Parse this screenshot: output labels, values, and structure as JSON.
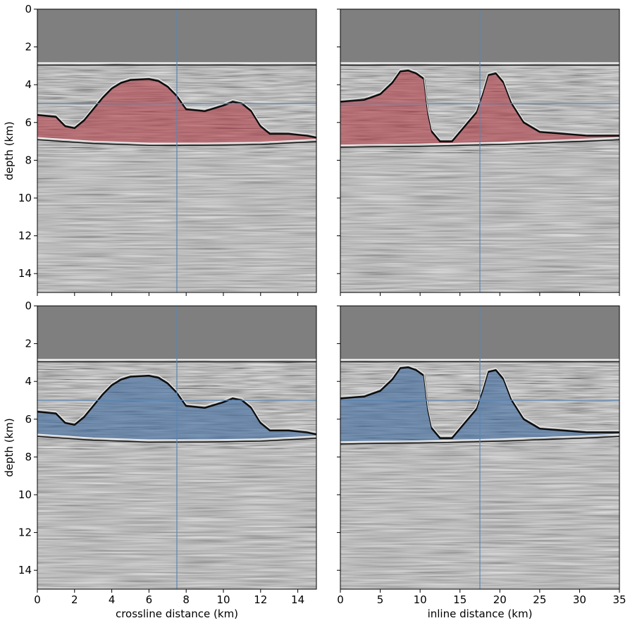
{
  "chart_data": [
    {
      "type": "heatmap",
      "panel": "top-left",
      "xlabel": "",
      "ylabel": "depth (km)",
      "xlim": [
        0,
        15
      ],
      "ylim": [
        0,
        15
      ],
      "y_inverted": true,
      "xticks": [
        0,
        2,
        4,
        6,
        8,
        10,
        12,
        14
      ],
      "yticks": [
        0,
        2,
        4,
        6,
        8,
        10,
        12,
        14
      ],
      "overlay_color": "#b0404a",
      "crosshair": {
        "x": 7.5,
        "y": 5.0
      },
      "water_bottom_depth": 2.85,
      "salt_top": [
        [
          0,
          5.6
        ],
        [
          1.0,
          5.7
        ],
        [
          1.5,
          6.2
        ],
        [
          2.0,
          6.3
        ],
        [
          2.5,
          5.9
        ],
        [
          3.0,
          5.3
        ],
        [
          3.5,
          4.7
        ],
        [
          4.0,
          4.2
        ],
        [
          4.5,
          3.9
        ],
        [
          5.0,
          3.75
        ],
        [
          6.0,
          3.7
        ],
        [
          6.5,
          3.8
        ],
        [
          7.0,
          4.1
        ],
        [
          7.5,
          4.6
        ],
        [
          8.0,
          5.3
        ],
        [
          9.0,
          5.4
        ],
        [
          10.0,
          5.1
        ],
        [
          10.5,
          4.9
        ],
        [
          11.0,
          5.0
        ],
        [
          11.5,
          5.4
        ],
        [
          12.0,
          6.2
        ],
        [
          12.5,
          6.6
        ],
        [
          13.5,
          6.6
        ],
        [
          14.5,
          6.7
        ],
        [
          15.0,
          6.8
        ]
      ],
      "salt_base": [
        [
          0,
          6.8
        ],
        [
          3.0,
          7.0
        ],
        [
          6.0,
          7.1
        ],
        [
          9.0,
          7.1
        ],
        [
          12.0,
          7.05
        ],
        [
          15.0,
          6.9
        ]
      ]
    },
    {
      "type": "heatmap",
      "panel": "top-right",
      "xlabel": "",
      "ylabel": "",
      "xlim": [
        0,
        35
      ],
      "ylim": [
        0,
        15
      ],
      "y_inverted": true,
      "xticks": [
        0,
        5,
        10,
        15,
        20,
        25,
        30,
        35
      ],
      "yticks": [
        0,
        2,
        4,
        6,
        8,
        10,
        12,
        14
      ],
      "overlay_color": "#b0404a",
      "crosshair": {
        "x": 17.5,
        "y": 5.0
      },
      "water_bottom_depth": 2.85,
      "salt_top": [
        [
          0,
          4.9
        ],
        [
          3.0,
          4.8
        ],
        [
          5.0,
          4.5
        ],
        [
          6.5,
          3.9
        ],
        [
          7.5,
          3.3
        ],
        [
          8.5,
          3.25
        ],
        [
          9.5,
          3.4
        ],
        [
          10.5,
          3.7
        ],
        [
          11.0,
          5.5
        ],
        [
          11.5,
          6.5
        ],
        [
          12.5,
          7.0
        ],
        [
          14.0,
          7.0
        ],
        [
          15.0,
          6.5
        ],
        [
          16.0,
          6.0
        ],
        [
          17.0,
          5.5
        ],
        [
          17.8,
          4.5
        ],
        [
          18.5,
          3.5
        ],
        [
          19.5,
          3.4
        ],
        [
          20.5,
          3.9
        ],
        [
          21.5,
          5.0
        ],
        [
          23.0,
          6.0
        ],
        [
          25.0,
          6.5
        ],
        [
          28.0,
          6.6
        ],
        [
          31.0,
          6.7
        ],
        [
          35.0,
          6.7
        ]
      ],
      "salt_base": [
        [
          0,
          7.2
        ],
        [
          10.0,
          7.15
        ],
        [
          20.0,
          7.05
        ],
        [
          30.0,
          6.9
        ],
        [
          35.0,
          6.8
        ]
      ]
    },
    {
      "type": "heatmap",
      "panel": "bottom-left",
      "xlabel": "crossline distance (km)",
      "ylabel": "depth (km)",
      "xlim": [
        0,
        15
      ],
      "ylim": [
        0,
        15
      ],
      "y_inverted": true,
      "xticks": [
        0,
        2,
        4,
        6,
        8,
        10,
        12,
        14
      ],
      "yticks": [
        0,
        2,
        4,
        6,
        8,
        10,
        12,
        14
      ],
      "overlay_color": "#3f6a9e",
      "crosshair": {
        "x": 7.5,
        "y": 5.0
      },
      "water_bottom_depth": 2.85,
      "salt_top": [
        [
          0,
          5.6
        ],
        [
          1.0,
          5.7
        ],
        [
          1.5,
          6.2
        ],
        [
          2.0,
          6.3
        ],
        [
          2.5,
          5.9
        ],
        [
          3.0,
          5.3
        ],
        [
          3.5,
          4.7
        ],
        [
          4.0,
          4.2
        ],
        [
          4.5,
          3.9
        ],
        [
          5.0,
          3.75
        ],
        [
          6.0,
          3.7
        ],
        [
          6.5,
          3.8
        ],
        [
          7.0,
          4.1
        ],
        [
          7.5,
          4.6
        ],
        [
          8.0,
          5.3
        ],
        [
          9.0,
          5.4
        ],
        [
          10.0,
          5.1
        ],
        [
          10.5,
          4.9
        ],
        [
          11.0,
          5.0
        ],
        [
          11.5,
          5.4
        ],
        [
          12.0,
          6.2
        ],
        [
          12.5,
          6.6
        ],
        [
          13.5,
          6.6
        ],
        [
          14.5,
          6.7
        ],
        [
          15.0,
          6.8
        ]
      ],
      "salt_base": [
        [
          0,
          6.8
        ],
        [
          3.0,
          7.0
        ],
        [
          6.0,
          7.1
        ],
        [
          9.0,
          7.1
        ],
        [
          12.0,
          7.05
        ],
        [
          15.0,
          6.9
        ]
      ]
    },
    {
      "type": "heatmap",
      "panel": "bottom-right",
      "xlabel": "inline distance (km)",
      "ylabel": "",
      "xlim": [
        0,
        35
      ],
      "ylim": [
        0,
        15
      ],
      "y_inverted": true,
      "xticks": [
        0,
        5,
        10,
        15,
        20,
        25,
        30,
        35
      ],
      "yticks": [
        0,
        2,
        4,
        6,
        8,
        10,
        12,
        14
      ],
      "overlay_color": "#3f6a9e",
      "crosshair": {
        "x": 17.5,
        "y": 5.0
      },
      "water_bottom_depth": 2.85,
      "salt_top": [
        [
          0,
          4.9
        ],
        [
          3.0,
          4.8
        ],
        [
          5.0,
          4.5
        ],
        [
          6.5,
          3.9
        ],
        [
          7.5,
          3.3
        ],
        [
          8.5,
          3.25
        ],
        [
          9.5,
          3.4
        ],
        [
          10.5,
          3.7
        ],
        [
          11.0,
          5.5
        ],
        [
          11.5,
          6.5
        ],
        [
          12.5,
          7.0
        ],
        [
          14.0,
          7.0
        ],
        [
          15.0,
          6.5
        ],
        [
          16.0,
          6.0
        ],
        [
          17.0,
          5.5
        ],
        [
          17.8,
          4.5
        ],
        [
          18.5,
          3.5
        ],
        [
          19.5,
          3.4
        ],
        [
          20.5,
          3.9
        ],
        [
          21.5,
          5.0
        ],
        [
          23.0,
          6.0
        ],
        [
          25.0,
          6.5
        ],
        [
          28.0,
          6.6
        ],
        [
          31.0,
          6.7
        ],
        [
          35.0,
          6.7
        ]
      ],
      "salt_base": [
        [
          0,
          7.2
        ],
        [
          10.0,
          7.15
        ],
        [
          20.0,
          7.05
        ],
        [
          30.0,
          6.9
        ],
        [
          35.0,
          6.8
        ]
      ]
    }
  ]
}
